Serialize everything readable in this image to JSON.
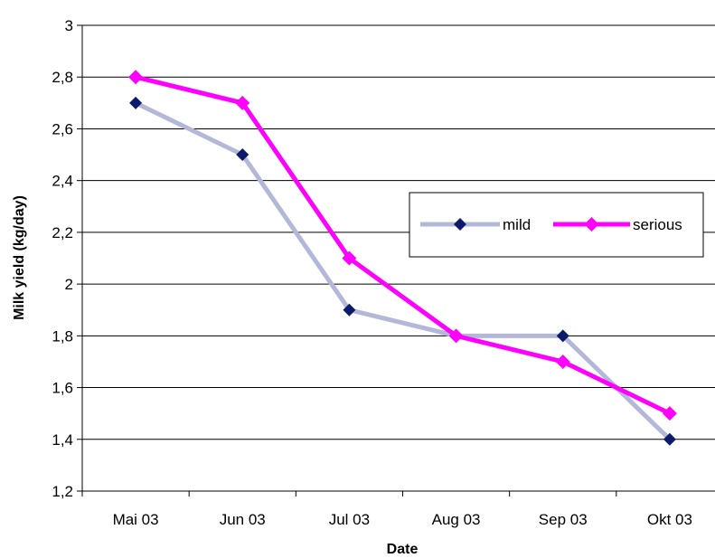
{
  "chart_data": {
    "type": "line",
    "title": "",
    "xlabel": "Date",
    "ylabel": "Milk yield (kg/day)",
    "categories": [
      "Mai 03",
      "Jun 03",
      "Jul 03",
      "Aug 03",
      "Sep 03",
      "Okt 03"
    ],
    "ylim": [
      1.2,
      3
    ],
    "ystep": 0.2,
    "ytick_labels": [
      "1,2",
      "1,4",
      "1,6",
      "1,8",
      "2",
      "2,2",
      "2,4",
      "2,6",
      "2,8",
      "3"
    ],
    "grid": true,
    "legend_position": "right",
    "series": [
      {
        "name": "mild",
        "values": [
          2.7,
          2.5,
          1.9,
          1.8,
          1.8,
          1.4
        ],
        "line_color": "#b4b8d8",
        "marker": "diamond",
        "marker_color": "#0d1a6b"
      },
      {
        "name": "serious",
        "values": [
          2.8,
          2.7,
          2.1,
          1.8,
          1.7,
          1.5
        ],
        "line_color": "#ff00ff",
        "marker": "diamond",
        "marker_color": "#ff00ff"
      }
    ]
  }
}
